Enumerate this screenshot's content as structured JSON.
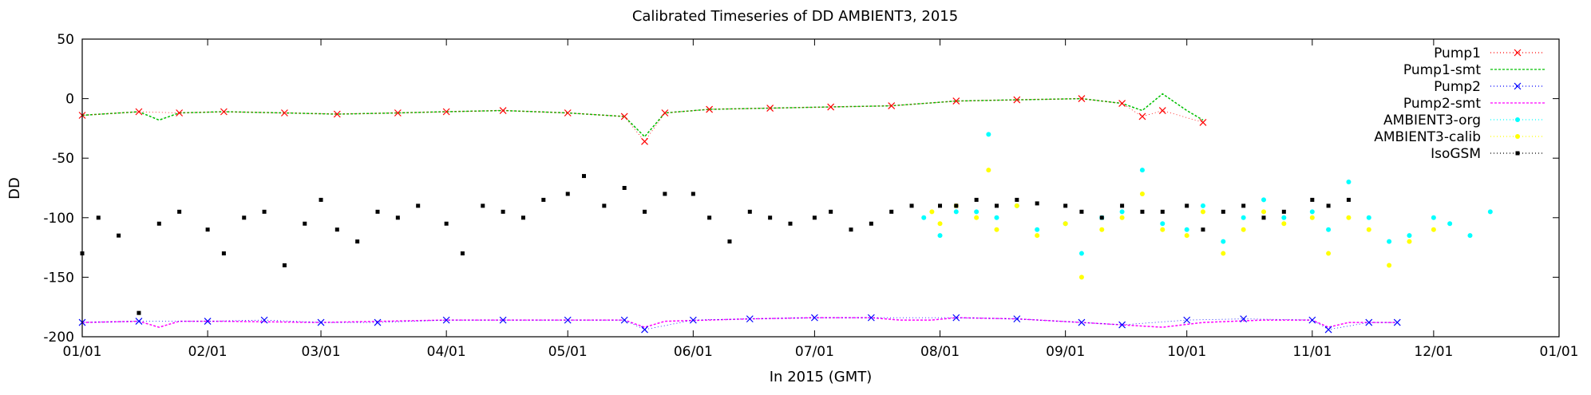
{
  "chart_data": {
    "type": "scatter",
    "title": "Calibrated Timeseries of DD AMBIENT3, 2015",
    "xlabel": "In 2015 (GMT)",
    "ylabel": "DD",
    "xlim": [
      "2015-01-01",
      "2016-01-01"
    ],
    "ylim": [
      -200,
      50
    ],
    "x_ticks": [
      "01/01",
      "02/01",
      "03/01",
      "04/01",
      "05/01",
      "06/01",
      "07/01",
      "08/01",
      "09/01",
      "10/01",
      "11/01",
      "12/01",
      "01/01"
    ],
    "y_ticks": [
      50,
      0,
      -50,
      -100,
      -150,
      -200
    ],
    "grid": false,
    "legend_position": "top-right",
    "series": [
      {
        "name": "Pump1",
        "style": "points-x",
        "color": "#ff0000",
        "x": [
          "2015-01-01",
          "2015-01-15",
          "2015-01-25",
          "2015-02-05",
          "2015-02-20",
          "2015-03-05",
          "2015-03-20",
          "2015-04-01",
          "2015-04-15",
          "2015-05-01",
          "2015-05-15",
          "2015-05-20",
          "2015-05-25",
          "2015-06-05",
          "2015-06-20",
          "2015-07-05",
          "2015-07-20",
          "2015-08-05",
          "2015-08-20",
          "2015-09-05",
          "2015-09-15",
          "2015-09-20",
          "2015-09-25",
          "2015-10-05"
        ],
        "y": [
          -14,
          -11,
          -12,
          -11,
          -12,
          -13,
          -12,
          -11,
          -10,
          -12,
          -15,
          -36,
          -12,
          -9,
          -8,
          -7,
          -6,
          -2,
          -1,
          0,
          -4,
          -15,
          -10,
          -20
        ]
      },
      {
        "name": "Pump1-smt",
        "style": "line",
        "color": "#00c000",
        "x": [
          "2015-01-01",
          "2015-01-15",
          "2015-01-20",
          "2015-01-25",
          "2015-02-05",
          "2015-02-20",
          "2015-03-05",
          "2015-03-20",
          "2015-04-01",
          "2015-04-15",
          "2015-05-01",
          "2015-05-15",
          "2015-05-20",
          "2015-05-25",
          "2015-06-05",
          "2015-06-20",
          "2015-07-05",
          "2015-07-20",
          "2015-07-28",
          "2015-08-05",
          "2015-08-20",
          "2015-09-05",
          "2015-09-15",
          "2015-09-20",
          "2015-09-25",
          "2015-10-01",
          "2015-10-05"
        ],
        "y": [
          -14,
          -11,
          -18,
          -12,
          -11,
          -12,
          -13,
          -12,
          -11,
          -10,
          -12,
          -15,
          -32,
          -12,
          -9,
          -8,
          -7,
          -6,
          -4,
          -2,
          -1,
          0,
          -4,
          -10,
          4,
          -10,
          -18
        ]
      },
      {
        "name": "Pump2",
        "style": "points-x",
        "color": "#0000ff",
        "x": [
          "2015-01-01",
          "2015-01-15",
          "2015-02-01",
          "2015-02-15",
          "2015-03-01",
          "2015-03-15",
          "2015-04-01",
          "2015-04-15",
          "2015-05-01",
          "2015-05-15",
          "2015-05-20",
          "2015-06-01",
          "2015-06-15",
          "2015-07-01",
          "2015-07-15",
          "2015-08-05",
          "2015-08-20",
          "2015-09-05",
          "2015-09-15",
          "2015-10-01",
          "2015-10-15",
          "2015-11-01",
          "2015-11-05",
          "2015-11-15",
          "2015-11-22"
        ],
        "y": [
          -188,
          -187,
          -187,
          -186,
          -188,
          -188,
          -186,
          -186,
          -186,
          -186,
          -194,
          -186,
          -185,
          -184,
          -184,
          -184,
          -185,
          -188,
          -190,
          -186,
          -185,
          -186,
          -194,
          -188,
          -188
        ]
      },
      {
        "name": "Pump2-smt",
        "style": "line",
        "color": "#ff00ff",
        "x": [
          "2015-01-01",
          "2015-01-15",
          "2015-01-20",
          "2015-01-25",
          "2015-02-05",
          "2015-03-01",
          "2015-04-01",
          "2015-05-01",
          "2015-05-15",
          "2015-05-20",
          "2015-05-25",
          "2015-06-15",
          "2015-07-01",
          "2015-07-15",
          "2015-07-22",
          "2015-07-30",
          "2015-08-05",
          "2015-08-20",
          "2015-09-05",
          "2015-09-15",
          "2015-09-25",
          "2015-10-05",
          "2015-10-20",
          "2015-11-01",
          "2015-11-05",
          "2015-11-10",
          "2015-11-22"
        ],
        "y": [
          -188,
          -187,
          -192,
          -187,
          -187,
          -188,
          -186,
          -186,
          -186,
          -192,
          -187,
          -185,
          -184,
          -184,
          -186,
          -186,
          -184,
          -185,
          -188,
          -190,
          -192,
          -188,
          -186,
          -186,
          -192,
          -188,
          -188
        ]
      },
      {
        "name": "AMBIENT3-org",
        "style": "points",
        "color": "#00ffff",
        "x": [
          "2015-07-28",
          "2015-08-01",
          "2015-08-05",
          "2015-08-10",
          "2015-08-13",
          "2015-08-15",
          "2015-08-20",
          "2015-08-25",
          "2015-09-01",
          "2015-09-05",
          "2015-09-10",
          "2015-09-15",
          "2015-09-20",
          "2015-09-25",
          "2015-10-01",
          "2015-10-05",
          "2015-10-10",
          "2015-10-15",
          "2015-10-20",
          "2015-10-25",
          "2015-11-01",
          "2015-11-05",
          "2015-11-10",
          "2015-11-15",
          "2015-11-20",
          "2015-11-25",
          "2015-12-01",
          "2015-12-05",
          "2015-12-10",
          "2015-12-15"
        ],
        "y": [
          -100,
          -115,
          -95,
          -95,
          -30,
          -100,
          -90,
          -110,
          -105,
          -130,
          -100,
          -95,
          -60,
          -105,
          -110,
          -90,
          -120,
          -100,
          -85,
          -100,
          -95,
          -110,
          -70,
          -100,
          -120,
          -115,
          -100,
          -105,
          -115,
          -95
        ]
      },
      {
        "name": "AMBIENT3-calib",
        "style": "points",
        "color": "#ffff00",
        "x": [
          "2015-07-30",
          "2015-08-01",
          "2015-08-05",
          "2015-08-10",
          "2015-08-13",
          "2015-08-15",
          "2015-08-20",
          "2015-08-25",
          "2015-09-01",
          "2015-09-05",
          "2015-09-10",
          "2015-09-15",
          "2015-09-20",
          "2015-09-25",
          "2015-10-01",
          "2015-10-05",
          "2015-10-10",
          "2015-10-15",
          "2015-10-20",
          "2015-10-25",
          "2015-11-01",
          "2015-11-05",
          "2015-11-10",
          "2015-11-15",
          "2015-11-20",
          "2015-11-25",
          "2015-12-01"
        ],
        "y": [
          -95,
          -105,
          -90,
          -100,
          -60,
          -110,
          -90,
          -115,
          -105,
          -150,
          -110,
          -100,
          -80,
          -110,
          -115,
          -95,
          -130,
          -110,
          -95,
          -105,
          -100,
          -130,
          -100,
          -110,
          -140,
          -120,
          -110
        ]
      },
      {
        "name": "IsoGSM",
        "style": "points-square",
        "color": "#000000",
        "x": [
          "2015-01-01",
          "2015-01-05",
          "2015-01-10",
          "2015-01-15",
          "2015-01-20",
          "2015-01-25",
          "2015-02-01",
          "2015-02-05",
          "2015-02-10",
          "2015-02-15",
          "2015-02-20",
          "2015-02-25",
          "2015-03-01",
          "2015-03-05",
          "2015-03-10",
          "2015-03-15",
          "2015-03-20",
          "2015-03-25",
          "2015-04-01",
          "2015-04-05",
          "2015-04-10",
          "2015-04-15",
          "2015-04-20",
          "2015-04-25",
          "2015-05-01",
          "2015-05-05",
          "2015-05-10",
          "2015-05-15",
          "2015-05-20",
          "2015-05-25",
          "2015-06-01",
          "2015-06-05",
          "2015-06-10",
          "2015-06-15",
          "2015-06-20",
          "2015-06-25",
          "2015-07-01",
          "2015-07-05",
          "2015-07-10",
          "2015-07-15",
          "2015-07-20",
          "2015-07-25",
          "2015-08-01",
          "2015-08-05",
          "2015-08-10",
          "2015-08-15",
          "2015-08-20",
          "2015-08-25",
          "2015-09-01",
          "2015-09-05",
          "2015-09-10",
          "2015-09-15",
          "2015-09-20",
          "2015-09-25",
          "2015-10-01",
          "2015-10-05",
          "2015-10-10",
          "2015-10-15",
          "2015-10-20",
          "2015-10-25",
          "2015-11-01",
          "2015-11-05",
          "2015-11-10"
        ],
        "y": [
          -130,
          -100,
          -115,
          -180,
          -105,
          -95,
          -110,
          -130,
          -100,
          -95,
          -140,
          -105,
          -85,
          -110,
          -120,
          -95,
          -100,
          -90,
          -105,
          -130,
          -90,
          -95,
          -100,
          -85,
          -80,
          -65,
          -90,
          -75,
          -95,
          -80,
          -80,
          -100,
          -120,
          -95,
          -100,
          -105,
          -100,
          -95,
          -110,
          -105,
          -95,
          -90,
          -90,
          -90,
          -85,
          -90,
          -85,
          -88,
          -90,
          -95,
          -100,
          -90,
          -95,
          -95,
          -90,
          -110,
          -95,
          -90,
          -100,
          -95,
          -85,
          -90,
          -85
        ]
      }
    ]
  }
}
